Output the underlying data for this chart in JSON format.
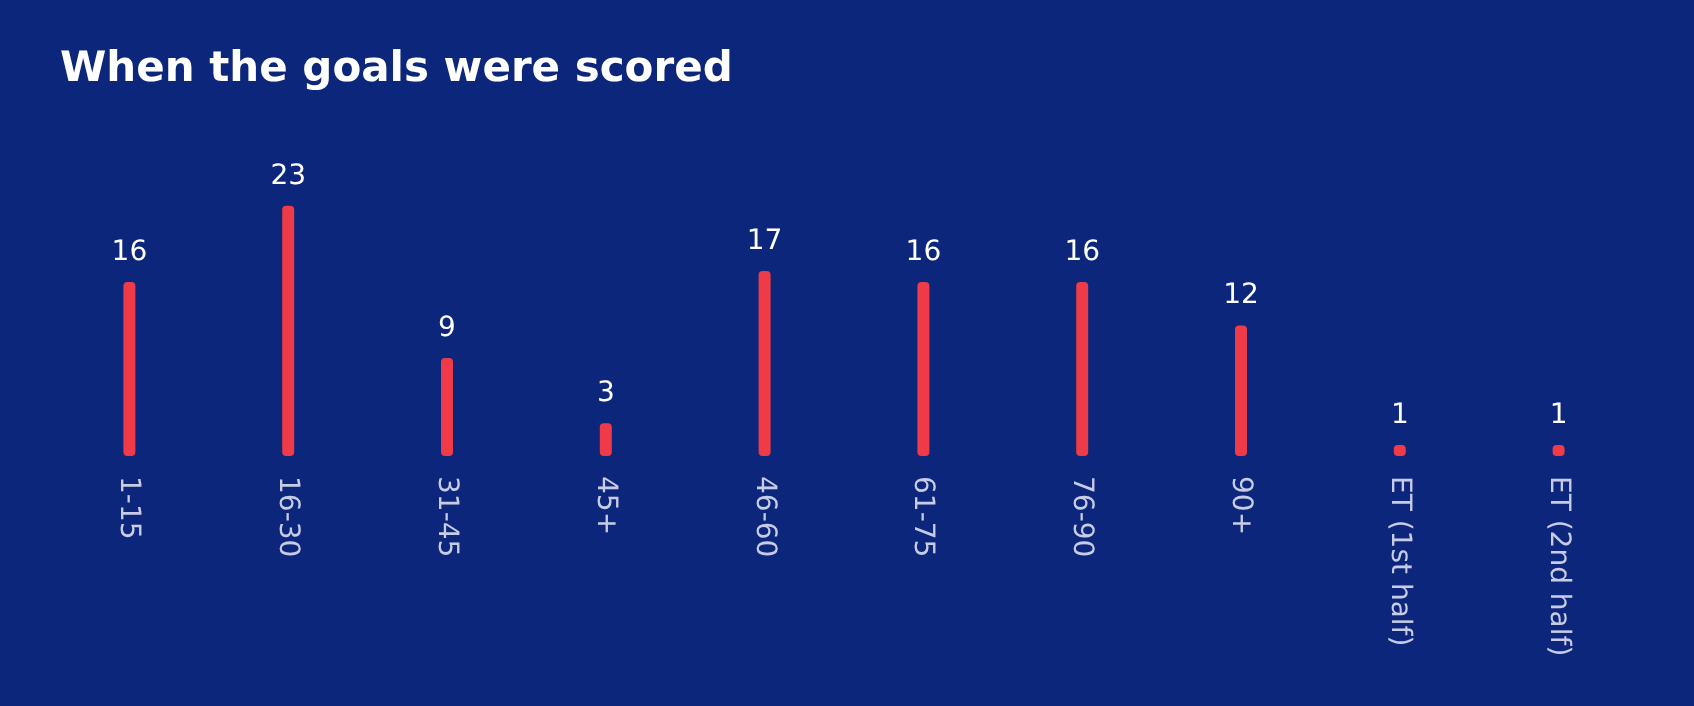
{
  "chart_data": {
    "type": "bar",
    "title": "When the goals were scored",
    "categories": [
      "1-15",
      "16-30",
      "31-45",
      "45+",
      "46-60",
      "61-75",
      "76-90",
      "90+",
      "ET (1st half)",
      "ET (2nd half)"
    ],
    "values": [
      16,
      23,
      9,
      3,
      17,
      16,
      16,
      12,
      1,
      1
    ],
    "color": "#ee3b47",
    "data_labels": true,
    "grid": false
  }
}
